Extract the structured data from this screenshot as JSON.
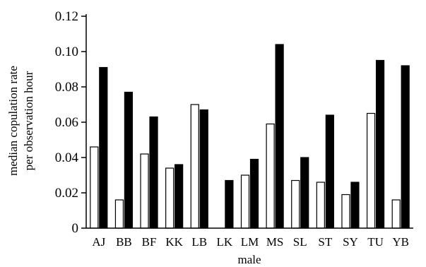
{
  "chart_data": {
    "type": "bar",
    "title": "",
    "xlabel": "male",
    "ylabel_lines": [
      "median copulation rate",
      "per observation hour"
    ],
    "categories": [
      "AJ",
      "BB",
      "BF",
      "KK",
      "LB",
      "LK",
      "LM",
      "MS",
      "SL",
      "ST",
      "SY",
      "TU",
      "YB"
    ],
    "series": [
      {
        "values": [
          0.046,
          0.016,
          0.042,
          0.034,
          0.07,
          0.0,
          0.03,
          0.059,
          0.027,
          0.026,
          0.019,
          0.065,
          0.016
        ],
        "color": "#ffffff"
      },
      {
        "values": [
          0.091,
          0.077,
          0.063,
          0.036,
          0.067,
          0.027,
          0.039,
          0.104,
          0.04,
          0.064,
          0.026,
          0.095,
          0.092
        ],
        "color": "#000000"
      }
    ],
    "yticks": [
      "0",
      "0.02",
      "0.04",
      "0.06",
      "0.08",
      "0.10",
      "0.12"
    ],
    "ylim": [
      0,
      0.12
    ],
    "grid": false,
    "legend": "none"
  }
}
